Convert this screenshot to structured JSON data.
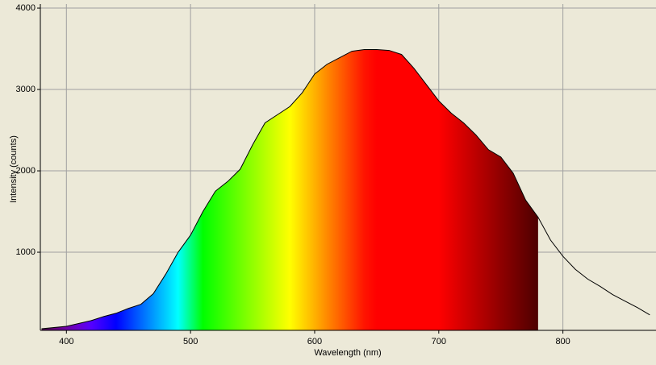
{
  "chart_data": {
    "type": "line",
    "xlabel": "Wavelength (nm)",
    "ylabel": "Intensity (counts)",
    "x": [
      380,
      400,
      420,
      430,
      440,
      450,
      460,
      470,
      480,
      490,
      500,
      510,
      520,
      530,
      540,
      550,
      560,
      570,
      580,
      590,
      600,
      610,
      620,
      630,
      640,
      650,
      660,
      670,
      680,
      690,
      700,
      710,
      720,
      730,
      740,
      750,
      760,
      770,
      780,
      790,
      800,
      810,
      820,
      830,
      840,
      850,
      860,
      870
    ],
    "series": [
      {
        "color": "#000000",
        "values": [
          60,
          90,
          160,
          210,
          250,
          310,
          360,
          490,
          730,
          1000,
          1210,
          1500,
          1750,
          1870,
          2020,
          2320,
          2590,
          2690,
          2790,
          2960,
          3190,
          3310,
          3390,
          3470,
          3490,
          3490,
          3480,
          3430,
          3260,
          3060,
          2860,
          2710,
          2590,
          2440,
          2260,
          2170,
          1970,
          1640,
          1430,
          1150,
          950,
          790,
          670,
          580,
          480,
          400,
          320,
          230
        ]
      }
    ],
    "xlim": [
      379,
      875
    ],
    "ylim": [
      40,
      4050
    ],
    "xticks": [
      400,
      500,
      600,
      700,
      800
    ],
    "yticks": [
      1000,
      2000,
      3000,
      4000
    ],
    "grid": true,
    "fill": "spectrum",
    "fill_xlim": [
      380,
      780
    ]
  }
}
